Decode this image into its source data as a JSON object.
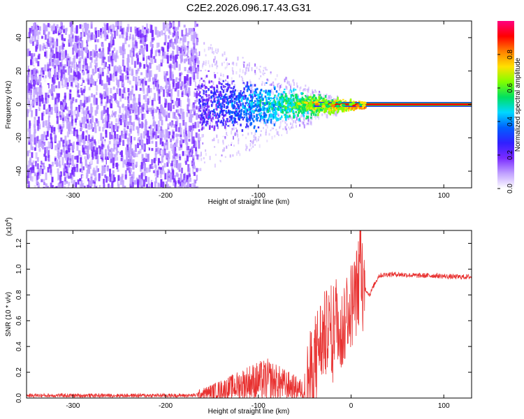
{
  "page": {
    "title": "C2E2.2026.096.17.43.G31"
  },
  "colors": {
    "signal_line": "#e8302f",
    "colorbar_stops": [
      "#ffffff",
      "#c0a0ff",
      "#7a2bff",
      "#3020ff",
      "#0060ff",
      "#00d8ff",
      "#00e060",
      "#80ff00",
      "#ffe000",
      "#ff8000",
      "#ff0000",
      "#ff0080"
    ]
  },
  "chart_data": [
    {
      "type": "heatmap",
      "xlabel": "Height of straight line (km)",
      "ylabel": "Frequency (Hz)",
      "xlim": [
        -350,
        130
      ],
      "ylim": [
        -50,
        50
      ],
      "xticks": [
        -300,
        -200,
        -100,
        0,
        100
      ],
      "xtick_labels": [
        "-300",
        "-200",
        "-100",
        "0",
        "100"
      ],
      "yticks": [
        -40,
        -20,
        0,
        20,
        40
      ],
      "ytick_labels": [
        "-40",
        "-20",
        "0",
        "20",
        "40"
      ],
      "colorbar": {
        "label": "Normalized spectral amplitude",
        "range": [
          0,
          1
        ],
        "ticks": [
          0.0,
          0.2,
          0.4,
          0.6,
          0.8
        ],
        "tick_labels": [
          "0.0",
          "0.2",
          "0.4",
          "0.6",
          "0.8"
        ]
      },
      "regions": [
        {
          "x_range": [
            -350,
            -165
          ],
          "freq_range": [
            -50,
            50
          ],
          "amplitude": "low broadband noise (~0.05-0.2)"
        },
        {
          "x_range": [
            -165,
            -60
          ],
          "freq_range": [
            -25,
            25
          ],
          "amplitude": "scattered (~0.1-0.4)"
        },
        {
          "x_range": [
            -60,
            15
          ],
          "freq_range": [
            -5,
            5
          ],
          "amplitude": "converging (~0.3-0.9)"
        },
        {
          "x_range": [
            15,
            130
          ],
          "freq_range": [
            -1,
            1
          ],
          "amplitude": "steady carrier (~0.9-1.0)"
        }
      ]
    },
    {
      "type": "line",
      "xlabel": "Height of straight line (km)",
      "ylabel": "SNR (10 * v/v)",
      "y_multiplier": "(x10^4)",
      "y_multiplier_base": "(x10",
      "y_multiplier_exp": "4",
      "xlim": [
        -350,
        130
      ],
      "ylim": [
        0,
        1.3
      ],
      "xticks": [
        -300,
        -200,
        -100,
        0,
        100
      ],
      "xtick_labels": [
        "-300",
        "-200",
        "-100",
        "0",
        "100"
      ],
      "yticks": [
        0.0,
        0.2,
        0.4,
        0.6,
        0.8,
        1.0,
        1.2
      ],
      "ytick_labels": [
        "0.0",
        "0.2",
        "0.4",
        "0.6",
        "0.8",
        "1.0",
        "1.2"
      ],
      "series": [
        {
          "x": [
            -350,
            -300,
            -250,
            -200,
            -170,
            -150,
            -130,
            -110,
            -90,
            -80,
            -70,
            -60,
            -50,
            -45,
            -40,
            -35,
            -30,
            -25,
            -20,
            -15,
            -10,
            -5,
            0,
            5,
            8,
            10,
            12,
            15,
            20,
            25,
            30,
            40,
            50,
            70,
            90,
            110,
            130
          ],
          "y": [
            0.02,
            0.02,
            0.02,
            0.02,
            0.02,
            0.05,
            0.08,
            0.12,
            0.14,
            0.12,
            0.1,
            0.08,
            0.06,
            0.15,
            0.28,
            0.42,
            0.48,
            0.5,
            0.55,
            0.65,
            0.5,
            0.7,
            0.72,
            0.8,
            0.9,
            1.28,
            0.9,
            0.85,
            0.8,
            0.88,
            0.95,
            0.96,
            0.96,
            0.95,
            0.95,
            0.94,
            0.94
          ]
        }
      ]
    }
  ]
}
